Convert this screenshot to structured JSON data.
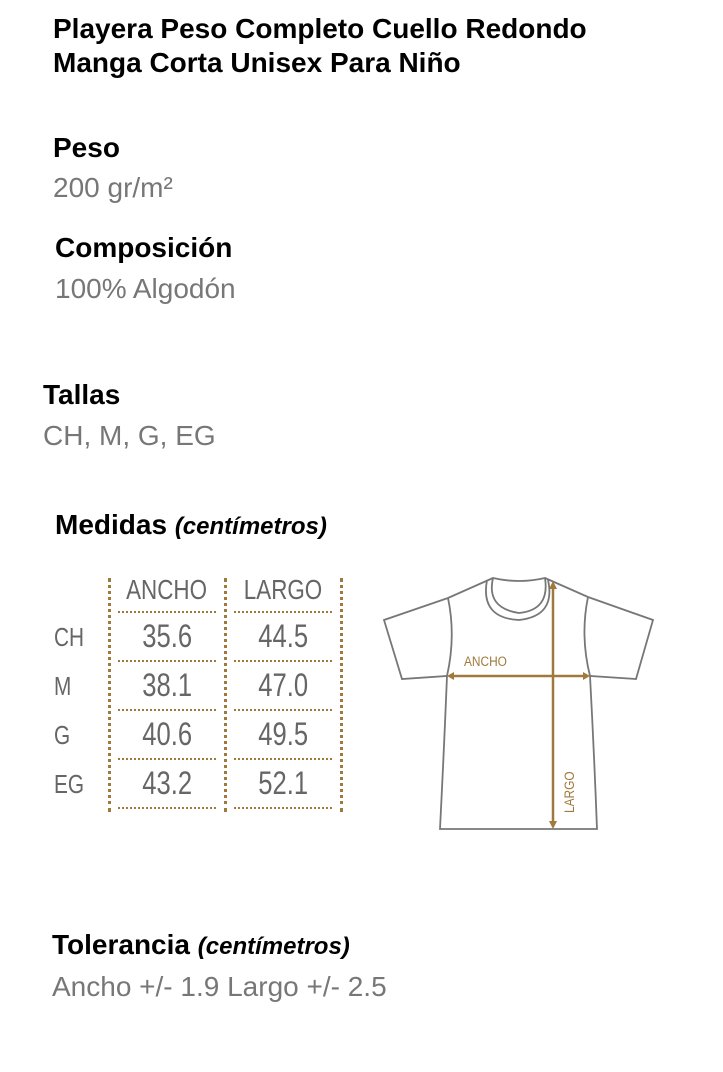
{
  "title": {
    "line1": "Playera Peso Completo Cuello Redondo",
    "line2": "Manga Corta Unisex Para Niño"
  },
  "peso": {
    "label": "Peso",
    "value": "200 gr/m²"
  },
  "composicion": {
    "label": "Composición",
    "value": "100% Algodón"
  },
  "tallas": {
    "label": "Tallas",
    "value": "CH, M, G, EG"
  },
  "medidas": {
    "label": "Medidas",
    "unit": "(centímetros)",
    "headers": [
      "ANCHO",
      "LARGO"
    ],
    "rows": [
      {
        "size": "CH",
        "ancho": "35.6",
        "largo": "44.5"
      },
      {
        "size": "M",
        "ancho": "38.1",
        "largo": "47.0"
      },
      {
        "size": "G",
        "ancho": "40.6",
        "largo": "49.5"
      },
      {
        "size": "EG",
        "ancho": "43.2",
        "largo": "52.1"
      }
    ]
  },
  "diagram": {
    "ancho_label": "ANCHO",
    "largo_label": "LARGO",
    "accent": "#a07a3c",
    "outline": "#777777"
  },
  "tolerancia": {
    "label": "Tolerancia",
    "unit": "(centímetros)",
    "value": "Ancho +/- 1.9 Largo +/- 2.5"
  }
}
